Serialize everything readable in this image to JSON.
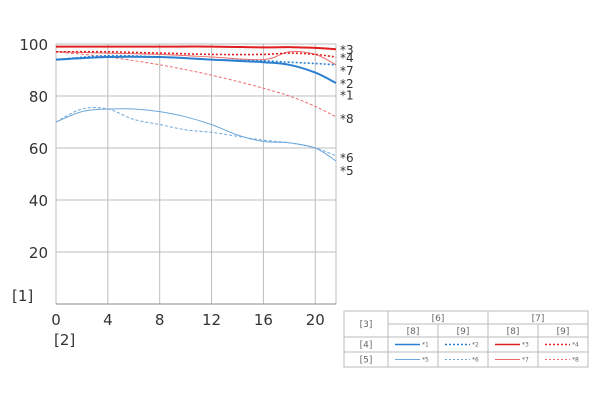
{
  "chart_data": {
    "type": "line",
    "xlim": [
      0,
      21.6
    ],
    "ylim": [
      0,
      100
    ],
    "x_ticks": [
      "0",
      "4",
      "8",
      "12",
      "16",
      "20"
    ],
    "y_ticks": [
      "20",
      "40",
      "60",
      "80",
      "100"
    ],
    "y_axis_marker": "[1]",
    "x_axis_marker": "[2]",
    "grid": true,
    "series": [
      {
        "name": "*1",
        "color": "#2a7fcf",
        "dash": "solid",
        "width": 2,
        "x": [
          0,
          4,
          8,
          12,
          16,
          18,
          20,
          21.6
        ],
        "y": [
          94,
          95,
          95,
          94,
          93,
          92,
          89,
          85
        ]
      },
      {
        "name": "*2",
        "color": "#2a7fcf",
        "dash": "dotted",
        "width": 1.6,
        "x": [
          0,
          4,
          8,
          12,
          16,
          18,
          20,
          21.6
        ],
        "y": [
          94,
          95.5,
          95,
          94,
          93.5,
          93,
          92.5,
          92
        ]
      },
      {
        "name": "*3",
        "color": "#e02020",
        "dash": "solid",
        "width": 2,
        "x": [
          0,
          4,
          8,
          12,
          16,
          18,
          20,
          21.6
        ],
        "y": [
          99,
          99,
          99,
          99,
          98.7,
          98.8,
          98.5,
          98
        ]
      },
      {
        "name": "*4",
        "color": "#e02020",
        "dash": "dotted",
        "width": 1.6,
        "x": [
          0,
          4,
          8,
          12,
          16,
          18,
          20,
          21.6
        ],
        "y": [
          97,
          97,
          96.5,
          96,
          96,
          96.5,
          96,
          95
        ]
      },
      {
        "name": "*5",
        "color": "#6ea8dc",
        "dash": "solid",
        "width": 1,
        "x": [
          0,
          2,
          4,
          6,
          8,
          10,
          12,
          14,
          16,
          18,
          20,
          21.6
        ],
        "y": [
          70,
          74,
          75,
          75,
          74,
          72,
          69,
          65,
          62.5,
          62,
          60,
          55
        ]
      },
      {
        "name": "*6",
        "color": "#6ea8dc",
        "dash": "dotted",
        "width": 1,
        "x": [
          0,
          2,
          4,
          6,
          8,
          10,
          12,
          14,
          16,
          18,
          20,
          21.6
        ],
        "y": [
          70,
          75,
          75,
          71,
          69,
          67,
          66,
          64.5,
          63,
          62,
          60,
          57
        ]
      },
      {
        "name": "*7",
        "color": "#ec6a6a",
        "dash": "solid",
        "width": 1,
        "x": [
          0,
          4,
          8,
          12,
          16,
          18,
          20,
          21.6
        ],
        "y": [
          97,
          96.5,
          96,
          95,
          94,
          97,
          96,
          92
        ]
      },
      {
        "name": "*8",
        "color": "#ec6a6a",
        "dash": "dotted",
        "width": 1,
        "x": [
          0,
          4,
          8,
          12,
          16,
          18,
          20,
          21.6
        ],
        "y": [
          97,
          95,
          92,
          88,
          83,
          80,
          76,
          72
        ]
      }
    ],
    "end_labels": [
      {
        "text": "*3",
        "y": 98
      },
      {
        "text": "*4",
        "y": 95
      },
      {
        "text": "*7",
        "y": 90
      },
      {
        "text": "*2",
        "y": 85
      },
      {
        "text": "*1",
        "y": 80.5
      },
      {
        "text": "*8",
        "y": 71.5
      },
      {
        "text": "*6",
        "y": 56.5
      },
      {
        "text": "*5",
        "y": 51.5
      }
    ]
  },
  "legend": {
    "corner": "[3]",
    "group_headers": [
      "[6]",
      "[7]"
    ],
    "sub_headers": [
      "[8]",
      "[9]",
      "[8]",
      "[9]"
    ],
    "rows": [
      {
        "label": "[4]",
        "items": [
          "*1",
          "*2",
          "*3",
          "*4"
        ]
      },
      {
        "label": "[5]",
        "items": [
          "*5",
          "*6",
          "*7",
          "*8"
        ]
      }
    ]
  }
}
